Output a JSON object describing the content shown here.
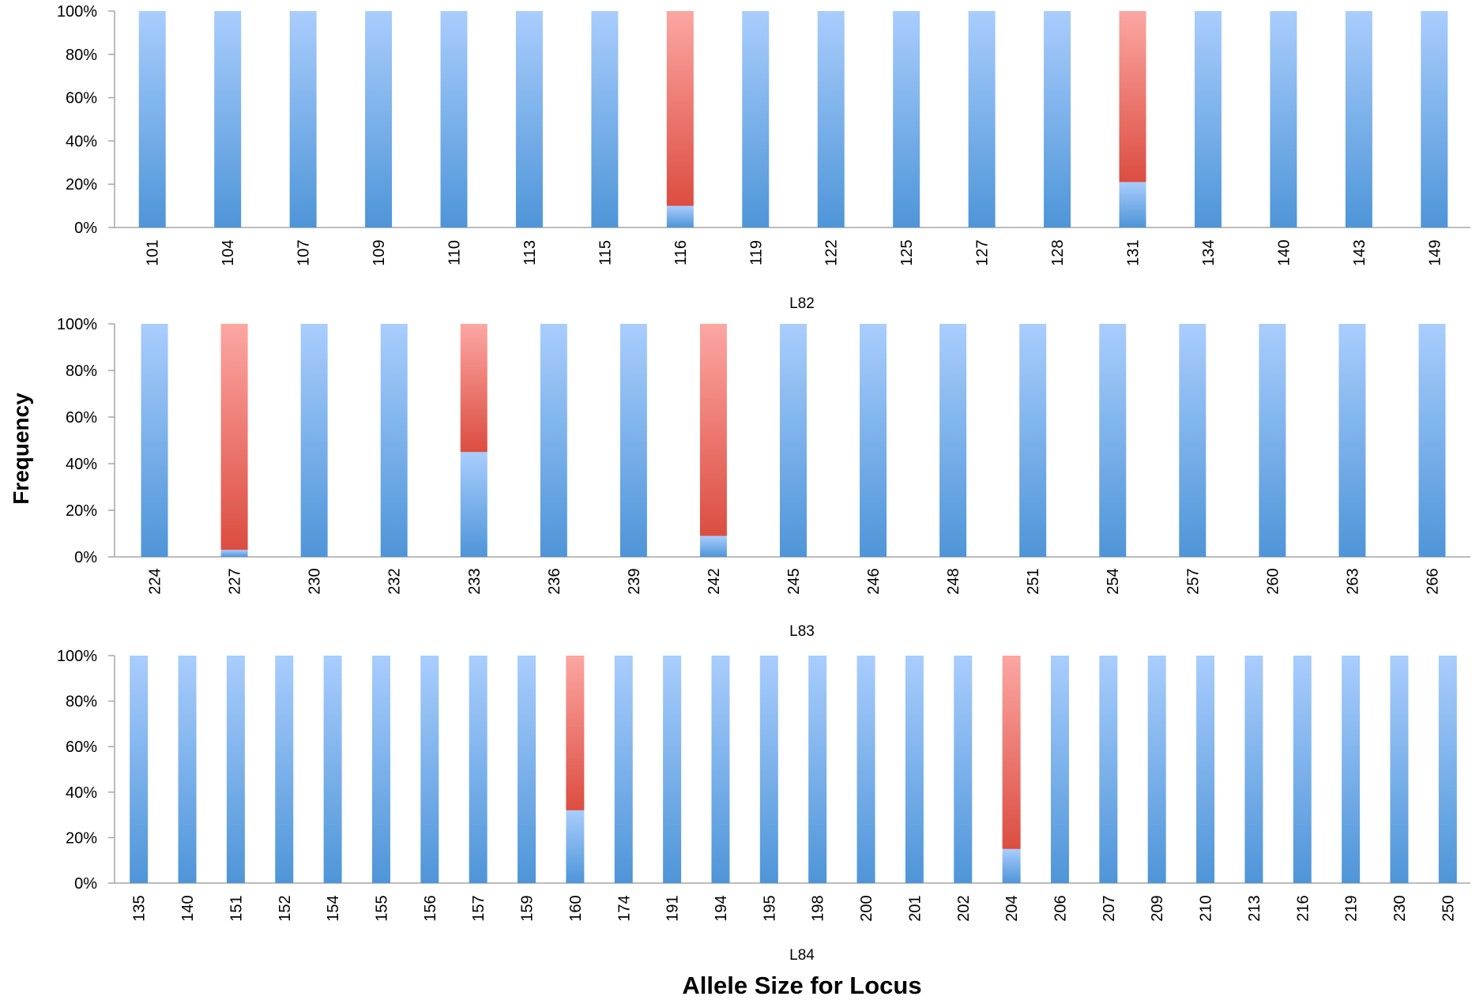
{
  "figure": {
    "ylabel": "Frequency",
    "xlabel": "Allele Size for Locus",
    "colors": {
      "series_1_light": "#a9cdfd",
      "series_1_dark": "#4e95d8",
      "series_2_light": "#fca6a2",
      "series_2_dark": "#dc4d41",
      "axis": "#a6a6a6"
    }
  },
  "chart_data": [
    {
      "type": "bar",
      "stacked": "percent",
      "title": "L82",
      "ylim": [
        0,
        100
      ],
      "yticks": [
        "0%",
        "20%",
        "40%",
        "60%",
        "80%",
        "100%"
      ],
      "categories": [
        "101",
        "104",
        "107",
        "109",
        "110",
        "113",
        "115",
        "116",
        "119",
        "122",
        "125",
        "127",
        "128",
        "131",
        "134",
        "140",
        "143",
        "149"
      ],
      "series": [
        {
          "color_key": "series_1",
          "values": [
            100,
            100,
            100,
            100,
            100,
            100,
            100,
            10,
            100,
            100,
            100,
            100,
            100,
            21,
            100,
            100,
            100,
            100
          ]
        },
        {
          "color_key": "series_2",
          "values": [
            0,
            0,
            0,
            0,
            0,
            0,
            0,
            90,
            0,
            0,
            0,
            0,
            0,
            79,
            0,
            0,
            0,
            0
          ]
        }
      ]
    },
    {
      "type": "bar",
      "stacked": "percent",
      "title": "L83",
      "ylim": [
        0,
        100
      ],
      "yticks": [
        "0%",
        "20%",
        "40%",
        "60%",
        "80%",
        "100%"
      ],
      "categories": [
        "224",
        "227",
        "230",
        "232",
        "233",
        "236",
        "239",
        "242",
        "245",
        "246",
        "248",
        "251",
        "254",
        "257",
        "260",
        "263",
        "266"
      ],
      "series": [
        {
          "color_key": "series_1",
          "values": [
            100,
            3,
            100,
            100,
            45,
            100,
            100,
            9,
            100,
            100,
            100,
            100,
            100,
            100,
            100,
            100,
            100
          ]
        },
        {
          "color_key": "series_2",
          "values": [
            0,
            97,
            0,
            0,
            55,
            0,
            0,
            91,
            0,
            0,
            0,
            0,
            0,
            0,
            0,
            0,
            0
          ]
        }
      ]
    },
    {
      "type": "bar",
      "stacked": "percent",
      "title": "L84",
      "ylim": [
        0,
        100
      ],
      "yticks": [
        "0%",
        "20%",
        "40%",
        "60%",
        "80%",
        "100%"
      ],
      "categories": [
        "135",
        "140",
        "151",
        "152",
        "154",
        "155",
        "156",
        "157",
        "159",
        "160",
        "174",
        "191",
        "194",
        "195",
        "198",
        "200",
        "201",
        "202",
        "204",
        "206",
        "207",
        "209",
        "210",
        "213",
        "216",
        "219",
        "230",
        "250"
      ],
      "series": [
        {
          "color_key": "series_1",
          "values": [
            100,
            100,
            100,
            100,
            100,
            100,
            100,
            100,
            100,
            32,
            100,
            100,
            100,
            100,
            100,
            100,
            100,
            100,
            15,
            100,
            100,
            100,
            100,
            100,
            100,
            100,
            100,
            100
          ]
        },
        {
          "color_key": "series_2",
          "values": [
            0,
            0,
            0,
            0,
            0,
            0,
            0,
            0,
            0,
            68,
            0,
            0,
            0,
            0,
            0,
            0,
            0,
            0,
            85,
            0,
            0,
            0,
            0,
            0,
            0,
            0,
            0,
            0
          ]
        }
      ]
    }
  ]
}
